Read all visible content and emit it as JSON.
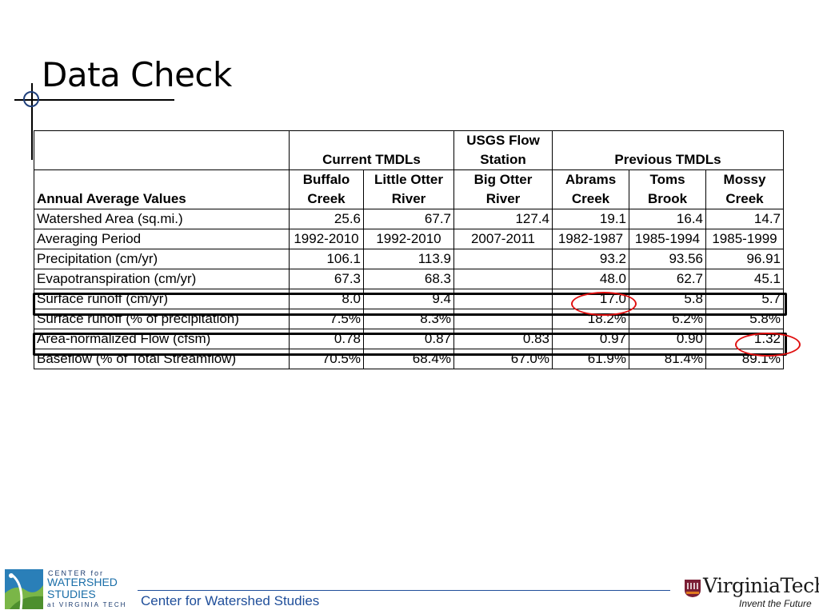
{
  "slide": {
    "title": "Data Check"
  },
  "table": {
    "header_row1": {
      "corner": "",
      "current_group": "Current TMDLs",
      "usgs_group": "USGS Flow Station",
      "previous_group": "Previous TMDLs"
    },
    "header_row2": {
      "rowhead": "Annual Average Values",
      "columns": [
        "Buffalo Creek",
        "Little Otter River",
        "Big Otter River",
        "Abrams Creek",
        "Toms Brook",
        "Mossy Creek"
      ]
    },
    "rows": [
      {
        "label": "Watershed Area (sq.mi.)",
        "values": [
          "25.6",
          "67.7",
          "127.4",
          "19.1",
          "16.4",
          "14.7"
        ]
      },
      {
        "label": "Averaging Period",
        "values": [
          "1992-2010",
          "1992-2010",
          "2007-2011",
          "1982-1987",
          "1985-1994",
          "1985-1999"
        ]
      },
      {
        "label": "Precipitation (cm/yr)",
        "values": [
          "106.1",
          "113.9",
          "",
          "93.2",
          "93.56",
          "96.91"
        ]
      },
      {
        "label": "Evapotranspiration (cm/yr)",
        "values": [
          "67.3",
          "68.3",
          "",
          "48.0",
          "62.7",
          "45.1"
        ]
      },
      {
        "label": "Surface runoff (cm/yr)",
        "values": [
          "8.0",
          "9.4",
          "",
          "17.0",
          "5.8",
          "5.7"
        ]
      },
      {
        "label": "Surface runoff (% of precipitation)",
        "values": [
          "7.5%",
          "8.3%",
          "",
          "18.2%",
          "6.2%",
          "5.8%"
        ]
      },
      {
        "label": "Area-normalized Flow (cfsm)",
        "values": [
          "0.78",
          "0.87",
          "0.83",
          "0.97",
          "0.90",
          "1.32"
        ]
      },
      {
        "label": "Baseflow (% of Total Streamflow)",
        "values": [
          "70.5%",
          "68.4%",
          "67.0%",
          "61.9%",
          "81.4%",
          "89.1%"
        ]
      }
    ],
    "highlighted_rows": [
      "Surface runoff (cm/yr)",
      "Area-normalized Flow (cfsm)"
    ],
    "circled_values": [
      "17.0",
      "1.32"
    ],
    "highlight_color": "#e01010"
  },
  "footer": {
    "text": "Center for Watershed Studies",
    "logo_left": {
      "line1": "CENTER for",
      "line2": "WATERSHED",
      "line3": "STUDIES",
      "line4": "at VIRGINIA TECH"
    },
    "logo_right": {
      "name": "VirginiaTech",
      "tagline": "Invent the Future"
    },
    "accent_color": "#1f4e9a"
  }
}
